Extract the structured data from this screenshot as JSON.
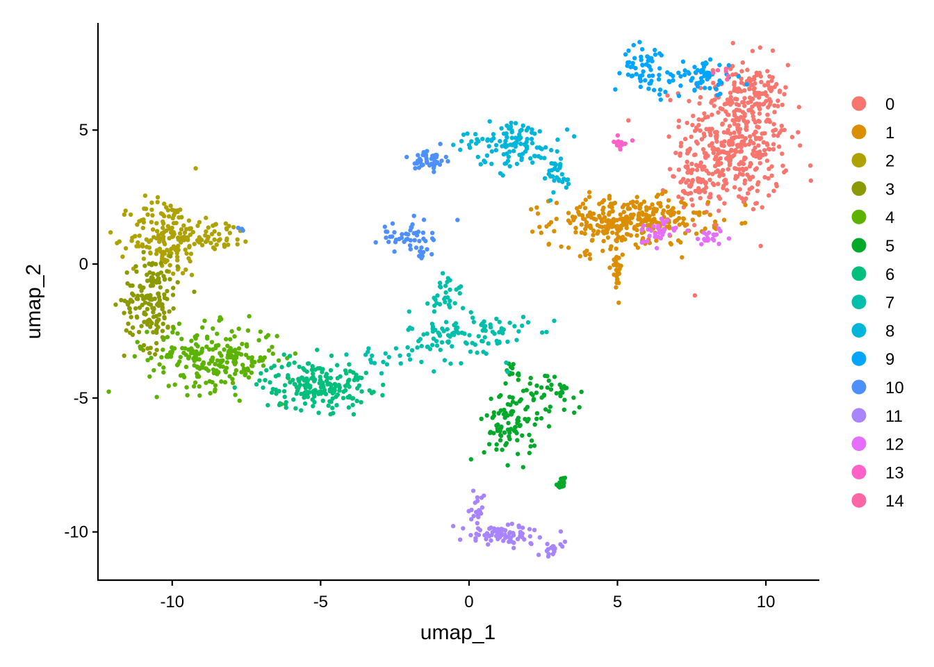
{
  "chart_data": {
    "type": "scatter",
    "xlabel": "umap_1",
    "ylabel": "umap_2",
    "xlim": [
      -12.5,
      11.8
    ],
    "ylim": [
      -11.8,
      9.0
    ],
    "x_ticks": [
      -10,
      -5,
      0,
      5,
      10
    ],
    "y_ticks": [
      -10,
      -5,
      0,
      5
    ],
    "x_tick_labels": [
      "-10",
      "-5",
      "0",
      "5",
      "10"
    ],
    "y_tick_labels": [
      "-10",
      "-5",
      "0",
      "5"
    ],
    "grid": false,
    "legend_position": "right",
    "series": [
      {
        "name": "0",
        "color": "#F8766D",
        "clusters": [
          {
            "cx": 9.0,
            "cy": 4.7,
            "sx": 0.9,
            "sy": 1.4,
            "n": 430
          },
          {
            "cx": 7.7,
            "cy": 3.0,
            "sx": 0.5,
            "sy": 0.35,
            "n": 60
          },
          {
            "cx": 9.7,
            "cy": 6.5,
            "sx": 0.5,
            "sy": 0.5,
            "n": 50
          }
        ]
      },
      {
        "name": "1",
        "color": "#DB8E00",
        "clusters": [
          {
            "cx": 5.4,
            "cy": 1.6,
            "sx": 1.3,
            "sy": 0.45,
            "n": 300
          },
          {
            "cx": 4.95,
            "cy": 0.0,
            "sx": 0.1,
            "sy": 0.55,
            "n": 30
          },
          {
            "cx": 3.95,
            "cy": 0.4,
            "sx": 0.1,
            "sy": 0.1,
            "n": 6
          }
        ]
      },
      {
        "name": "2",
        "color": "#AEA200",
        "clusters": [
          {
            "cx": -10.2,
            "cy": 1.0,
            "sx": 0.6,
            "sy": 0.75,
            "n": 170
          },
          {
            "cx": -8.5,
            "cy": 1.1,
            "sx": 0.6,
            "sy": 0.3,
            "n": 45
          }
        ]
      },
      {
        "name": "3",
        "color": "#8B9A00",
        "clusters": [
          {
            "cx": -10.7,
            "cy": -1.4,
            "sx": 0.45,
            "sy": 0.85,
            "n": 160
          }
        ]
      },
      {
        "name": "4",
        "color": "#5BB300",
        "clusters": [
          {
            "cx": -8.6,
            "cy": -3.5,
            "sx": 1.1,
            "sy": 0.6,
            "n": 230
          }
        ]
      },
      {
        "name": "5",
        "color": "#00A929",
        "clusters": [
          {
            "cx": 1.4,
            "cy": -6.0,
            "sx": 0.45,
            "sy": 0.7,
            "n": 90
          },
          {
            "cx": 2.8,
            "cy": -4.8,
            "sx": 0.5,
            "sy": 0.45,
            "n": 40
          },
          {
            "cx": 3.1,
            "cy": -8.2,
            "sx": 0.08,
            "sy": 0.12,
            "n": 14
          },
          {
            "cx": 1.5,
            "cy": -4.0,
            "sx": 0.12,
            "sy": 0.2,
            "n": 10
          }
        ]
      },
      {
        "name": "6",
        "color": "#00BF7D",
        "clusters": [
          {
            "cx": -5.2,
            "cy": -4.5,
            "sx": 0.9,
            "sy": 0.45,
            "n": 200
          }
        ]
      },
      {
        "name": "7",
        "color": "#00BFAA",
        "clusters": [
          {
            "cx": 0.0,
            "cy": -2.7,
            "sx": 1.0,
            "sy": 0.5,
            "n": 110
          },
          {
            "cx": -0.7,
            "cy": -1.1,
            "sx": 0.3,
            "sy": 0.45,
            "n": 30
          },
          {
            "cx": -3.0,
            "cy": -3.5,
            "sx": 0.6,
            "sy": 0.2,
            "n": 20
          }
        ]
      },
      {
        "name": "8",
        "color": "#00B5DA",
        "clusters": [
          {
            "cx": 1.6,
            "cy": 4.5,
            "sx": 0.7,
            "sy": 0.45,
            "n": 100
          },
          {
            "cx": 2.9,
            "cy": 3.3,
            "sx": 0.3,
            "sy": 0.4,
            "n": 30
          },
          {
            "cx": 0.3,
            "cy": 4.6,
            "sx": 0.4,
            "sy": 0.15,
            "n": 15
          }
        ]
      },
      {
        "name": "9",
        "color": "#00A5FF",
        "clusters": [
          {
            "cx": 6.0,
            "cy": 7.3,
            "sx": 0.4,
            "sy": 0.45,
            "n": 60
          },
          {
            "cx": 7.8,
            "cy": 7.0,
            "sx": 0.6,
            "sy": 0.35,
            "n": 60
          }
        ]
      },
      {
        "name": "10",
        "color": "#4D8FFF",
        "clusters": [
          {
            "cx": -1.3,
            "cy": 3.9,
            "sx": 0.25,
            "sy": 0.2,
            "n": 50
          },
          {
            "cx": -2.2,
            "cy": 1.1,
            "sx": 0.5,
            "sy": 0.25,
            "n": 40
          },
          {
            "cx": -1.6,
            "cy": 0.4,
            "sx": 0.15,
            "sy": 0.3,
            "n": 14
          },
          {
            "cx": -7.7,
            "cy": 1.2,
            "sx": 0.05,
            "sy": 0.1,
            "n": 3
          }
        ]
      },
      {
        "name": "11",
        "color": "#A984FF",
        "clusters": [
          {
            "cx": 1.2,
            "cy": -10.1,
            "sx": 0.8,
            "sy": 0.2,
            "n": 80
          },
          {
            "cx": 0.3,
            "cy": -9.3,
            "sx": 0.1,
            "sy": 0.35,
            "n": 20
          },
          {
            "cx": 2.8,
            "cy": -10.6,
            "sx": 0.15,
            "sy": 0.15,
            "n": 14
          }
        ]
      },
      {
        "name": "12",
        "color": "#E56EFF",
        "clusters": [
          {
            "cx": 6.3,
            "cy": 1.2,
            "sx": 0.35,
            "sy": 0.25,
            "n": 35
          },
          {
            "cx": 8.2,
            "cy": 1.0,
            "sx": 0.35,
            "sy": 0.15,
            "n": 20
          }
        ]
      },
      {
        "name": "13",
        "color": "#FF61C9",
        "clusters": [
          {
            "cx": 5.1,
            "cy": 4.5,
            "sx": 0.18,
            "sy": 0.15,
            "n": 14
          }
        ]
      },
      {
        "name": "14",
        "color": "#FF67A4",
        "clusters": [
          {
            "cx": 8.6,
            "cy": 7.2,
            "sx": 0.15,
            "sy": 0.15,
            "n": 6
          }
        ]
      }
    ]
  }
}
